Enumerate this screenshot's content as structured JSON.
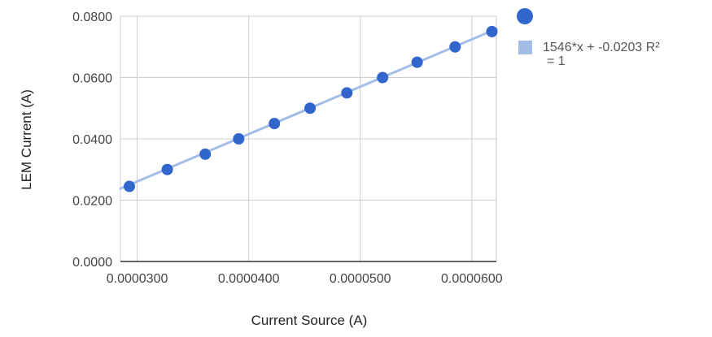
{
  "chart_data": {
    "type": "scatter",
    "title": "",
    "xlabel": "Current Source (A)",
    "ylabel": "LEM Current (A)",
    "xlim": [
      2.85e-05,
      6.22e-05
    ],
    "ylim": [
      0.0,
      0.08
    ],
    "x_ticks": [
      "0.0000300",
      "0.0000400",
      "0.0000500",
      "0.0000600"
    ],
    "x_tick_values": [
      3e-05,
      4e-05,
      5e-05,
      6e-05
    ],
    "y_ticks": [
      "0.0000",
      "0.0200",
      "0.0400",
      "0.0600",
      "0.0800"
    ],
    "y_tick_values": [
      0.0,
      0.02,
      0.04,
      0.06,
      0.08
    ],
    "grid": true,
    "legend_position": "right",
    "series": [
      {
        "color": "#3366cc",
        "points": [
          {
            "x": 2.93e-05,
            "y": 0.0245
          },
          {
            "x": 3.27e-05,
            "y": 0.03
          },
          {
            "x": 3.61e-05,
            "y": 0.035
          },
          {
            "x": 3.91e-05,
            "y": 0.04
          },
          {
            "x": 4.23e-05,
            "y": 0.045
          },
          {
            "x": 4.55e-05,
            "y": 0.05
          },
          {
            "x": 4.88e-05,
            "y": 0.055
          },
          {
            "x": 5.2e-05,
            "y": 0.06
          },
          {
            "x": 5.51e-05,
            "y": 0.065
          },
          {
            "x": 5.85e-05,
            "y": 0.07
          },
          {
            "x": 6.18e-05,
            "y": 0.075
          }
        ]
      }
    ],
    "trendline": {
      "label_line1": "1546*x + -0.0203 R²",
      "label_line2": "= 1",
      "slope": 1546,
      "intercept": -0.0203,
      "color": "#a4bde8"
    }
  }
}
